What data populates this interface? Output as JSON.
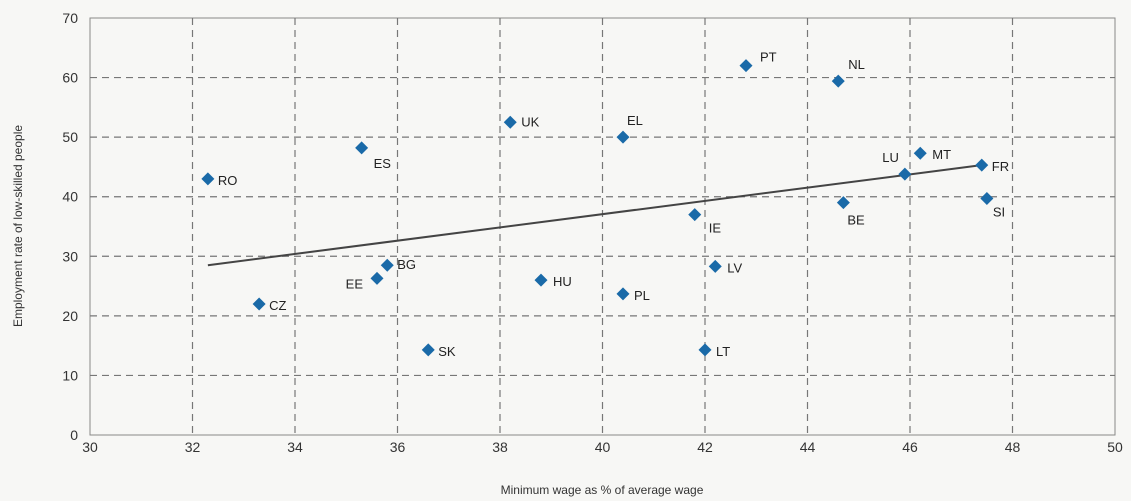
{
  "chart_data": {
    "type": "scatter",
    "title": "",
    "xlabel": "Minimum wage as % of average wage",
    "ylabel": "Employment rate of low-skilled people",
    "xlim": [
      30,
      50
    ],
    "ylim": [
      0,
      70
    ],
    "xticks": [
      30,
      32,
      34,
      36,
      38,
      40,
      42,
      44,
      46,
      48,
      50
    ],
    "yticks": [
      0,
      10,
      20,
      30,
      40,
      50,
      60,
      70
    ],
    "grid": true,
    "marker_color": "#1a6aa8",
    "points": [
      {
        "label": "RO",
        "x": 32.3,
        "y": 43.0
      },
      {
        "label": "CZ",
        "x": 33.3,
        "y": 22.0
      },
      {
        "label": "ES",
        "x": 35.3,
        "y": 48.2
      },
      {
        "label": "EE",
        "x": 35.6,
        "y": 26.3
      },
      {
        "label": "BG",
        "x": 35.8,
        "y": 28.5
      },
      {
        "label": "SK",
        "x": 36.6,
        "y": 14.3
      },
      {
        "label": "UK",
        "x": 38.2,
        "y": 52.5
      },
      {
        "label": "HU",
        "x": 38.8,
        "y": 26.0
      },
      {
        "label": "EL",
        "x": 40.4,
        "y": 50.0
      },
      {
        "label": "PL",
        "x": 40.4,
        "y": 23.7
      },
      {
        "label": "IE",
        "x": 41.8,
        "y": 37.0
      },
      {
        "label": "LT",
        "x": 42.0,
        "y": 14.3
      },
      {
        "label": "LV",
        "x": 42.2,
        "y": 28.3
      },
      {
        "label": "PT",
        "x": 42.8,
        "y": 62.0
      },
      {
        "label": "NL",
        "x": 44.6,
        "y": 59.4
      },
      {
        "label": "BE",
        "x": 44.7,
        "y": 39.0
      },
      {
        "label": "LU",
        "x": 45.9,
        "y": 43.8
      },
      {
        "label": "MT",
        "x": 46.2,
        "y": 47.3
      },
      {
        "label": "FR",
        "x": 47.4,
        "y": 45.3
      },
      {
        "label": "SI",
        "x": 47.5,
        "y": 39.7
      }
    ],
    "trendline": {
      "x": [
        32.3,
        47.3
      ],
      "y": [
        28.5,
        45.2
      ]
    }
  }
}
